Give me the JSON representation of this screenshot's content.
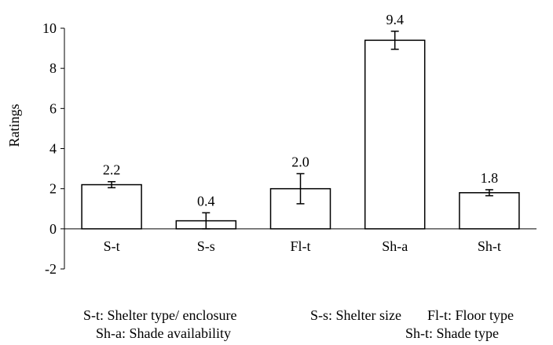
{
  "chart_data": {
    "type": "bar",
    "categories": [
      "S-t",
      "S-s",
      "Fl-t",
      "Sh-a",
      "Sh-t"
    ],
    "values": [
      2.2,
      0.4,
      2.0,
      9.4,
      1.8
    ],
    "data_labels": [
      "2.2",
      "0.4",
      "2.0",
      "9.4",
      "1.8"
    ],
    "error": [
      0.15,
      0.4,
      0.75,
      0.45,
      0.15
    ],
    "title": "",
    "xlabel": "",
    "ylabel": "Ratings",
    "ylim": [
      -2,
      10
    ],
    "yticks": [
      -2,
      0,
      2,
      4,
      6,
      8,
      10
    ],
    "grid": false,
    "bar_fill": "#ffffff",
    "bar_stroke": "#000000"
  },
  "legend": {
    "items": [
      "S-t: Shelter type/ enclosure",
      "S-s: Shelter size",
      "Fl-t: Floor type",
      "Sh-a: Shade availability",
      "Sh-t: Shade type"
    ]
  }
}
